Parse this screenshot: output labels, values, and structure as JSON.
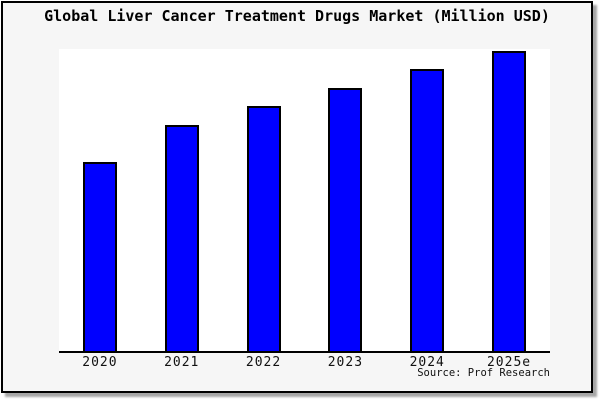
{
  "chart": {
    "title": "Global Liver Cancer Treatment Drugs Market (Million USD)",
    "source": "Source: Prof Research"
  },
  "chart_data": {
    "type": "bar",
    "title": "Global Liver Cancer Treatment Drugs Market (Million USD)",
    "categories": [
      "2020",
      "2021",
      "2022",
      "2023",
      "2024",
      "2025e"
    ],
    "values": [
      63,
      75.3,
      81.7,
      87.7,
      94,
      100
    ],
    "value_note": "no numeric y-axis shown in image; values are relative bar heights as % of tallest (2025e) bar",
    "xlabel": "",
    "ylabel": "",
    "ylim": [
      0,
      100
    ],
    "grid": false,
    "legend": null,
    "source": "Source: Prof Research",
    "colors": {
      "bar_fill": "#0000ff",
      "bar_edge": "#000000",
      "panel_bg": "#f6f6f6",
      "plot_bg": "#ffffff",
      "axis": "#000000",
      "text": "#000000",
      "shadow": "#a6a6a6"
    }
  }
}
